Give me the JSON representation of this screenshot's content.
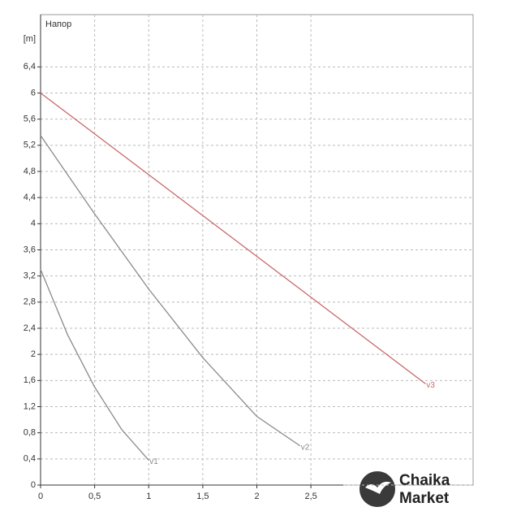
{
  "chart_data": {
    "type": "line",
    "title": "Напор",
    "y_unit": "[m]",
    "xlim": [
      0,
      4
    ],
    "ylim": [
      0,
      7.2
    ],
    "xticks": [
      0,
      {
        "value": 0.5,
        "label": "0,5"
      },
      1,
      {
        "value": 1.5,
        "label": "1,5"
      },
      2,
      {
        "value": 2.5,
        "label": "2,5"
      }
    ],
    "yticks": [
      0,
      {
        "value": 0.4,
        "label": "0,4"
      },
      {
        "value": 0.8,
        "label": "0,8"
      },
      {
        "value": 1.2,
        "label": "1,2"
      },
      {
        "value": 1.6,
        "label": "1,6"
      },
      2,
      {
        "value": 2.4,
        "label": "2,4"
      },
      {
        "value": 2.8,
        "label": "2,8"
      },
      {
        "value": 3.2,
        "label": "3,2"
      },
      {
        "value": 3.6,
        "label": "3,6"
      },
      4,
      {
        "value": 4.4,
        "label": "4,4"
      },
      {
        "value": 4.8,
        "label": "4,8"
      },
      {
        "value": 5.2,
        "label": "5,2"
      },
      {
        "value": 5.6,
        "label": "5,6"
      },
      6,
      {
        "value": 6.4,
        "label": "6,4"
      }
    ],
    "grid": true,
    "series": [
      {
        "name": "v1",
        "color": "#8a8a8a",
        "x": [
          0,
          0.25,
          0.5,
          0.75,
          1.0
        ],
        "values": [
          3.3,
          2.3,
          1.5,
          0.85,
          0.38
        ]
      },
      {
        "name": "v2",
        "color": "#8a8a8a",
        "x": [
          0,
          0.5,
          1.0,
          1.5,
          2.0,
          2.4
        ],
        "values": [
          5.35,
          4.15,
          3.0,
          1.95,
          1.05,
          0.6
        ]
      },
      {
        "name": "v3",
        "color": "#c96a6a",
        "x": [
          0,
          3.56
        ],
        "values": [
          6.0,
          1.55
        ]
      }
    ]
  },
  "watermark": {
    "line1": "Chaika",
    "line2": "Market"
  }
}
